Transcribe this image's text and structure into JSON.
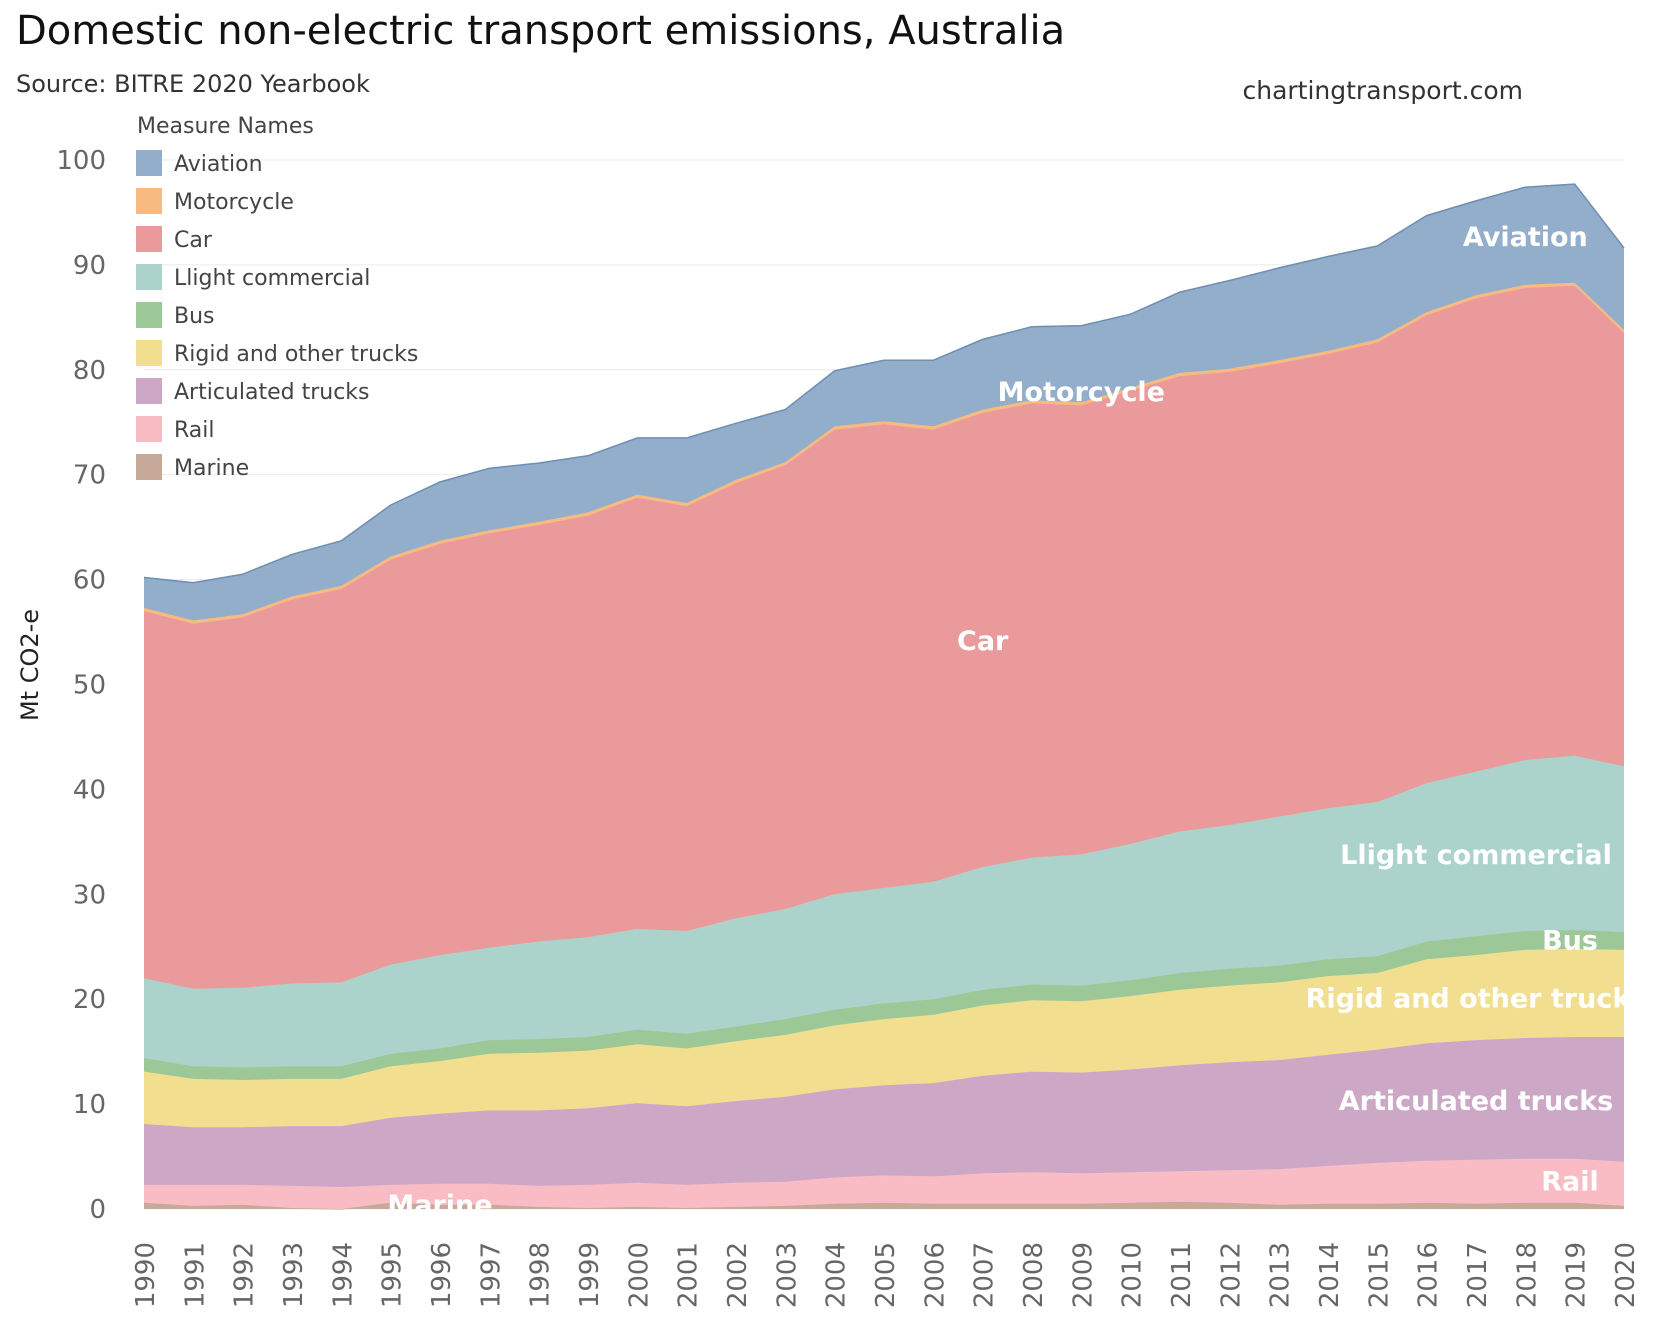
{
  "title": "Domestic non-electric transport emissions, Australia",
  "subtitle": "Source: BITRE 2020 Yearbook",
  "credit": "chartingtransport.com",
  "chart_data": {
    "type": "area",
    "stacked": true,
    "ylabel": "Mt CO2-e",
    "xlabel": "",
    "ylim": [
      -2,
      104
    ],
    "yticks": [
      0,
      10,
      20,
      30,
      40,
      50,
      60,
      70,
      80,
      90,
      100
    ],
    "grid": true,
    "legend_title": "Measure Names",
    "legend_position": "top-left",
    "x": [
      "1990",
      "1991",
      "1992",
      "1993",
      "1994",
      "1995",
      "1996",
      "1997",
      "1998",
      "1999",
      "2000",
      "2001",
      "2002",
      "2003",
      "2004",
      "2005",
      "2006",
      "2007",
      "2008",
      "2009",
      "2010",
      "2011",
      "2012",
      "2013",
      "2014",
      "2015",
      "2016",
      "2017",
      "2018",
      "2019",
      "2020"
    ],
    "series": [
      {
        "name": "Marine",
        "color": "#c7a99a",
        "values": [
          0.6,
          0.3,
          0.4,
          0.1,
          0,
          0.6,
          0.4,
          0.4,
          0.2,
          0.1,
          0.2,
          0.1,
          0.2,
          0.3,
          0.5,
          0.6,
          0.5,
          0.5,
          0.5,
          0.5,
          0.6,
          0.7,
          0.6,
          0.4,
          0.5,
          0.5,
          0.6,
          0.5,
          0.6,
          0.6,
          0.3
        ]
      },
      {
        "name": "Rail",
        "color": "#f9bcc5",
        "values": [
          1.7,
          2.0,
          1.9,
          2.1,
          2.1,
          1.7,
          2.0,
          2.0,
          2.0,
          2.2,
          2.3,
          2.2,
          2.3,
          2.3,
          2.5,
          2.6,
          2.6,
          2.9,
          3.0,
          2.9,
          2.9,
          2.9,
          3.1,
          3.4,
          3.6,
          3.9,
          4.0,
          4.2,
          4.2,
          4.2,
          4.2
        ]
      },
      {
        "name": "Articulated trucks",
        "color": "#cca8c6",
        "values": [
          5.8,
          5.5,
          5.5,
          5.7,
          5.8,
          6.4,
          6.7,
          7.0,
          7.2,
          7.3,
          7.6,
          7.5,
          7.8,
          8.1,
          8.4,
          8.6,
          8.9,
          9.3,
          9.6,
          9.6,
          9.8,
          10.1,
          10.3,
          10.4,
          10.6,
          10.8,
          11.2,
          11.4,
          11.5,
          11.6,
          11.9
        ]
      },
      {
        "name": "Rigid and other trucks",
        "color": "#f1df8f",
        "values": [
          5.0,
          4.6,
          4.5,
          4.5,
          4.5,
          4.9,
          5.0,
          5.4,
          5.5,
          5.5,
          5.6,
          5.5,
          5.7,
          5.9,
          6.1,
          6.3,
          6.5,
          6.7,
          6.8,
          6.8,
          7.0,
          7.2,
          7.3,
          7.4,
          7.5,
          7.3,
          8.0,
          8.1,
          8.4,
          8.4,
          8.3
        ]
      },
      {
        "name": "Bus",
        "color": "#9cc898",
        "values": [
          1.3,
          1.2,
          1.2,
          1.2,
          1.2,
          1.2,
          1.2,
          1.3,
          1.3,
          1.3,
          1.4,
          1.4,
          1.4,
          1.5,
          1.5,
          1.5,
          1.5,
          1.5,
          1.5,
          1.5,
          1.5,
          1.6,
          1.6,
          1.6,
          1.6,
          1.6,
          1.7,
          1.8,
          1.8,
          1.8,
          1.7
        ]
      },
      {
        "name": "Llight commercial",
        "color": "#acd2cc",
        "values": [
          7.6,
          7.4,
          7.6,
          7.9,
          8.0,
          8.5,
          8.9,
          8.8,
          9.3,
          9.5,
          9.6,
          9.8,
          10.3,
          10.5,
          11.0,
          11.0,
          11.2,
          11.7,
          12.1,
          12.5,
          13.0,
          13.5,
          13.7,
          14.2,
          14.4,
          14.7,
          15.1,
          15.7,
          16.3,
          16.6,
          15.8
        ]
      },
      {
        "name": "Car",
        "color": "#eb9a9c",
        "values": [
          35.0,
          34.8,
          35.3,
          36.6,
          37.5,
          38.6,
          39.2,
          39.5,
          39.7,
          40.2,
          41.1,
          40.5,
          41.5,
          42.3,
          44.3,
          44.2,
          43.1,
          43.3,
          43.3,
          42.8,
          43.2,
          43.4,
          43.2,
          43.2,
          43.3,
          43.8,
          44.6,
          45.1,
          45.0,
          44.8,
          41.3
        ]
      },
      {
        "name": "Motorcycle",
        "color": "#f7bb81",
        "values": [
          0.3,
          0.3,
          0.3,
          0.3,
          0.3,
          0.3,
          0.3,
          0.3,
          0.3,
          0.3,
          0.3,
          0.3,
          0.3,
          0.3,
          0.3,
          0.3,
          0.3,
          0.3,
          0.3,
          0.3,
          0.3,
          0.3,
          0.3,
          0.3,
          0.3,
          0.3,
          0.3,
          0.3,
          0.3,
          0.3,
          0.3
        ]
      },
      {
        "name": "Aviation",
        "color": "#93aecb",
        "values": [
          2.9,
          3.6,
          3.8,
          4.0,
          4.3,
          4.9,
          5.6,
          5.9,
          5.6,
          5.4,
          5.4,
          6.2,
          5.4,
          5.0,
          5.3,
          5.8,
          6.3,
          6.7,
          7.0,
          7.3,
          7.0,
          7.7,
          8.4,
          8.8,
          9.0,
          8.9,
          9.2,
          9.0,
          9.3,
          9.4,
          7.8
        ]
      }
    ],
    "annotations": [
      {
        "text": "Aviation",
        "series": "Aviation",
        "year": "2018"
      },
      {
        "text": "Motorcycle",
        "series": "Motorcycle",
        "year": "2009"
      },
      {
        "text": "Car",
        "series": "Car",
        "year": "2007"
      },
      {
        "text": "Llight commercial",
        "series": "Llight commercial",
        "year": "2017"
      },
      {
        "text": "Bus",
        "series": "Bus",
        "year": "2019"
      },
      {
        "text": "Rigid and other trucks",
        "series": "Rigid and other trucks",
        "year": "2017"
      },
      {
        "text": "Articulated trucks",
        "series": "Articulated trucks",
        "year": "2017"
      },
      {
        "text": "Rail",
        "series": "Rail",
        "year": "2019"
      },
      {
        "text": "Marine",
        "series": "Marine",
        "year": "1996"
      }
    ],
    "legend_order": [
      "Aviation",
      "Motorcycle",
      "Car",
      "Llight commercial",
      "Bus",
      "Rigid and other trucks",
      "Articulated trucks",
      "Rail",
      "Marine"
    ]
  }
}
